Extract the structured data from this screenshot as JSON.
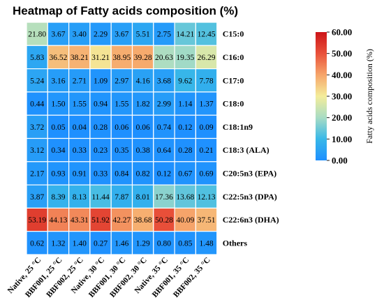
{
  "chart_data": {
    "type": "heatmap",
    "title": "Heatmap of Fatty acids composition (%)",
    "rows": [
      "C15:0",
      "C16:0",
      "C17:0",
      "C18:0",
      "C18:1n9",
      "C18:3 (ALA)",
      "C20:5n3 (EPA)",
      "C22:5n3 (DPA)",
      "C22:6n3 (DHA)",
      "Others"
    ],
    "columns": [
      "Native, 25 °C",
      "BBF001, 25 °C",
      "BBF002, 25 °C",
      "Native, 30 °C",
      "BBF001, 30 °C",
      "BBF002, 30 °C",
      "Native, 35 °C",
      "BBF001, 35 °C",
      "BBF002, 35 °C"
    ],
    "values": [
      [
        21.8,
        3.67,
        3.4,
        2.29,
        3.67,
        5.51,
        2.75,
        14.21,
        12.45
      ],
      [
        5.83,
        36.52,
        38.21,
        31.21,
        38.95,
        39.28,
        20.63,
        19.35,
        26.29
      ],
      [
        5.24,
        3.16,
        2.71,
        1.09,
        2.97,
        4.16,
        3.68,
        9.62,
        7.78
      ],
      [
        0.44,
        1.5,
        1.55,
        0.94,
        1.55,
        1.82,
        2.99,
        1.14,
        1.37
      ],
      [
        3.72,
        0.05,
        0.04,
        0.28,
        0.06,
        0.06,
        0.74,
        0.12,
        0.09
      ],
      [
        3.12,
        0.34,
        0.33,
        0.23,
        0.35,
        0.38,
        0.64,
        0.28,
        0.21
      ],
      [
        2.17,
        0.93,
        0.91,
        0.33,
        0.84,
        0.82,
        0.12,
        0.67,
        0.69
      ],
      [
        3.87,
        8.39,
        8.13,
        11.44,
        7.87,
        8.01,
        17.36,
        13.68,
        12.13
      ],
      [
        53.19,
        44.13,
        43.31,
        51.92,
        42.27,
        38.68,
        50.28,
        40.09,
        37.51
      ],
      [
        0.62,
        1.32,
        1.4,
        0.27,
        1.46,
        1.29,
        0.8,
        0.85,
        1.48
      ]
    ],
    "colorbar": {
      "label": "Fatty acids composition (%)",
      "range": [
        0,
        60
      ],
      "ticks": [
        "0.00",
        "10.00",
        "20.00",
        "30.00",
        "40.00",
        "50.00",
        "60.00"
      ],
      "stops": [
        "#1e90ff",
        "#38b8e8",
        "#a8dcc4",
        "#f4ed9a",
        "#f6a56a",
        "#e9513a",
        "#cc1418"
      ]
    }
  }
}
